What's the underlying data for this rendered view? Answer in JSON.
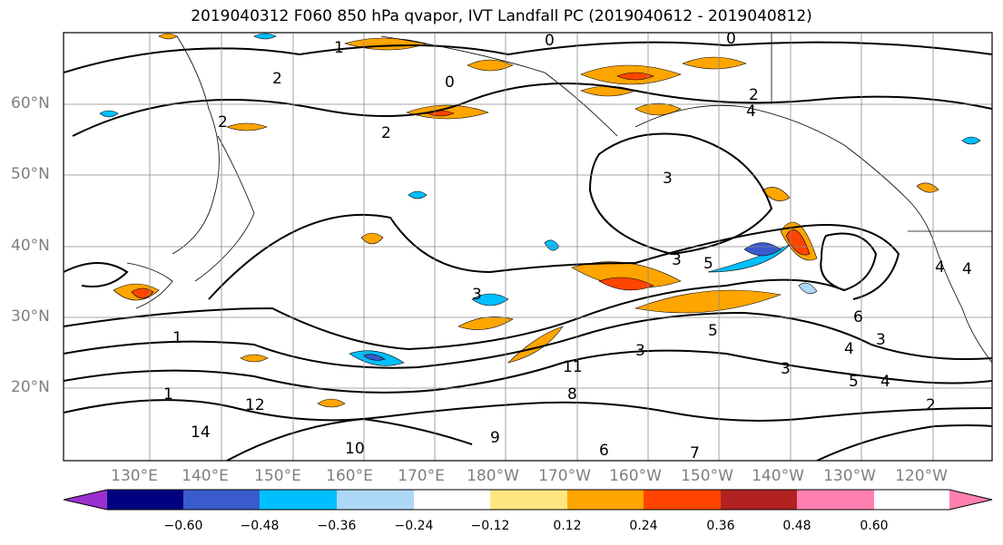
{
  "title": "2019040312 F060 850 hPa qvapor, IVT Landfall PC (2019040612 - 2019040812)",
  "lat_labels": [
    "60°N",
    "50°N",
    "40°N",
    "30°N",
    "20°N"
  ],
  "lon_labels": [
    "130°E",
    "140°E",
    "150°E",
    "160°E",
    "170°E",
    "180°W",
    "170°W",
    "160°W",
    "150°W",
    "140°W",
    "130°W",
    "120°W"
  ],
  "colorbar": {
    "ticks": [
      "−0.60",
      "−0.48",
      "−0.36",
      "−0.24",
      "−0.12",
      "0.12",
      "0.24",
      "0.36",
      "0.48",
      "0.60"
    ],
    "colors": [
      "#9b30d0",
      "#000080",
      "#3a5bcc",
      "#00bfff",
      "#add8f6",
      "#ffffff",
      "#ffe680",
      "#ffa500",
      "#ff4500",
      "#b22222",
      "#ff80b0"
    ]
  },
  "contour_labels": [
    "1",
    "0",
    "0",
    "0",
    "2",
    "2",
    "2",
    "2",
    "3",
    "4",
    "4",
    "5",
    "3",
    "3",
    "4",
    "3",
    "5",
    "3",
    "3",
    "4",
    "5",
    "1",
    "14",
    "12",
    "10",
    "11",
    "8",
    "9",
    "6",
    "2",
    "4",
    "1",
    "6",
    "7"
  ]
}
